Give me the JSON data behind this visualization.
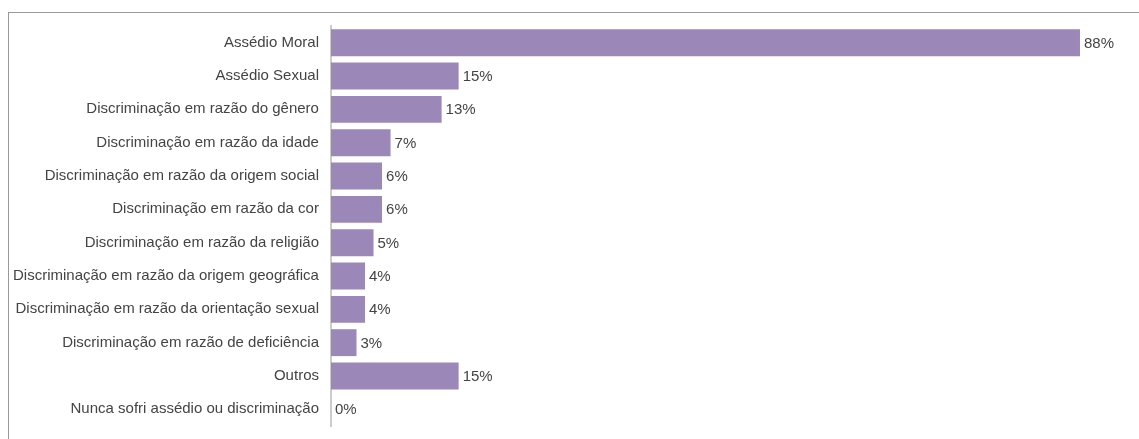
{
  "chart_data": {
    "type": "bar",
    "orientation": "horizontal",
    "color": "#9b87b8",
    "tick_labels": "y",
    "categories": [
      "Assédio Moral",
      "Assédio Sexual",
      "Discriminação em razão do gênero",
      "Discriminação em razão da idade",
      "Discriminação em razão da origem social",
      "Discriminação em razão da cor",
      "Discriminação em razão da religião",
      "Discriminação em razão da origem geográfica",
      "Discriminação em razão da orientação sexual",
      "Discriminação em razão de deficiência",
      "Outros",
      "Nunca sofri assédio ou discriminação"
    ],
    "values": [
      88,
      15,
      13,
      7,
      6,
      6,
      5,
      4,
      4,
      3,
      15,
      0
    ],
    "value_labels": [
      "88%",
      "15%",
      "13%",
      "7%",
      "6%",
      "6%",
      "5%",
      "4%",
      "4%",
      "3%",
      "15%",
      "0%"
    ]
  }
}
